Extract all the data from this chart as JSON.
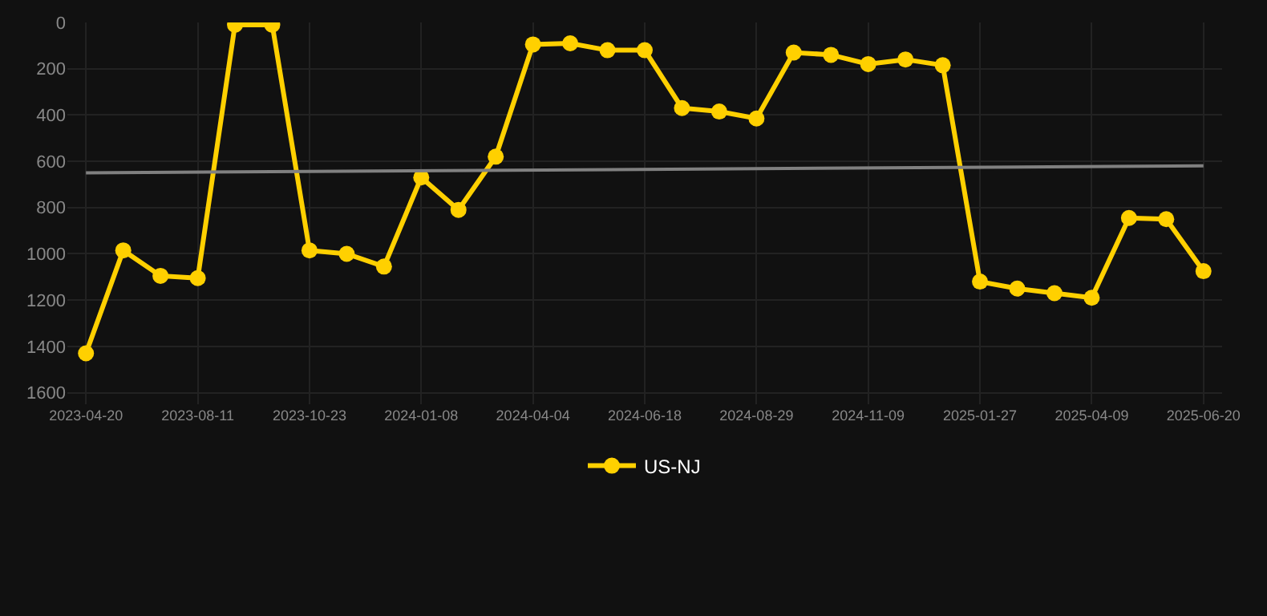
{
  "chart_data": {
    "type": "line",
    "categories": [
      "2023-04-20",
      null,
      null,
      "2023-08-11",
      null,
      null,
      "2023-10-23",
      null,
      null,
      "2024-01-08",
      null,
      null,
      "2024-04-04",
      null,
      null,
      "2024-06-18",
      null,
      null,
      "2024-08-29",
      null,
      null,
      "2024-11-09",
      null,
      null,
      "2025-01-27",
      null,
      null,
      "2025-04-09",
      null,
      null,
      "2025-06-20"
    ],
    "series": [
      {
        "name": "US-NJ",
        "color": "#ffd000",
        "marker": "circle",
        "values": [
          1430,
          985,
          1095,
          1105,
          10,
          10,
          985,
          1000,
          1055,
          670,
          810,
          580,
          95,
          90,
          120,
          120,
          370,
          385,
          415,
          130,
          140,
          180,
          160,
          185,
          1120,
          1150,
          1170,
          1190,
          845,
          850,
          1075
        ]
      },
      {
        "color": "#808080",
        "marker": "none",
        "values": [
          650,
          null,
          null,
          null,
          null,
          null,
          null,
          null,
          null,
          null,
          null,
          null,
          null,
          null,
          null,
          null,
          null,
          null,
          null,
          null,
          null,
          null,
          null,
          null,
          null,
          null,
          null,
          null,
          null,
          null,
          620
        ]
      }
    ],
    "ylim": [
      1650,
      0
    ],
    "yticks": [
      0,
      200,
      400,
      600,
      800,
      1000,
      1200,
      1400,
      1600
    ],
    "grid": true,
    "legend": "bottom"
  }
}
